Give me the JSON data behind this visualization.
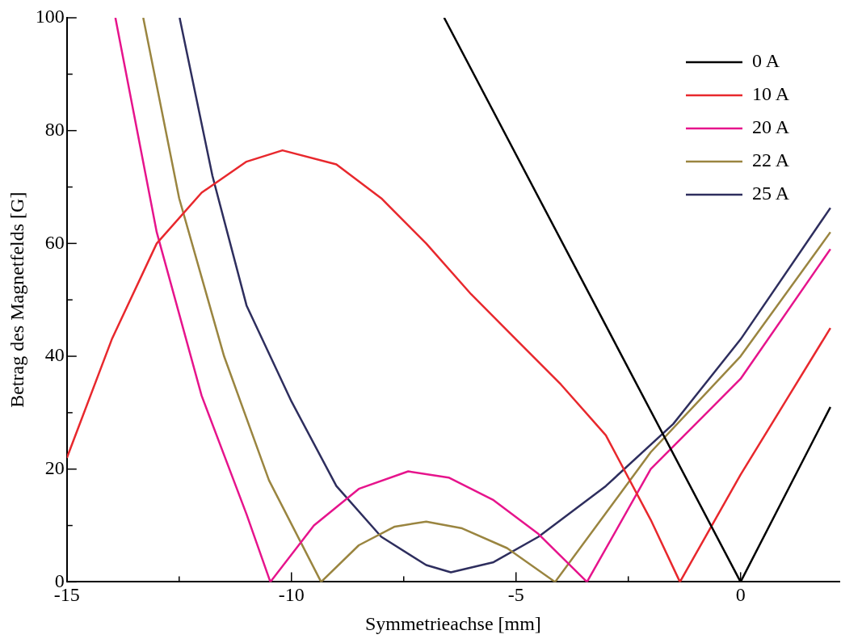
{
  "chart_data": {
    "type": "line",
    "xlabel": "Symmetrieachse [mm]",
    "ylabel": "Betrag des Magnetfelds [G]",
    "xlim": [
      -15,
      2.2
    ],
    "ylim": [
      0,
      100
    ],
    "xticks": [
      -15,
      {
        "value": -12.5,
        "label": null
      },
      -10,
      {
        "value": -7.5,
        "label": null
      },
      -5,
      {
        "value": -2.5,
        "label": null
      },
      0
    ],
    "yticks": [
      0,
      {
        "value": 10,
        "label": null
      },
      20,
      {
        "value": 30,
        "label": null
      },
      40,
      {
        "value": 50,
        "label": null
      },
      60,
      {
        "value": 70,
        "label": null
      },
      80,
      {
        "value": 90,
        "label": null
      },
      100
    ],
    "grid": false,
    "legend": "top right",
    "marker": "none",
    "line_style": "solid",
    "series": [
      {
        "name": "0 A",
        "color": "#000000",
        "x": [
          -6.6,
          0,
          2
        ],
        "values": [
          100,
          0,
          31
        ]
      },
      {
        "name": "10 A",
        "color": "#e8282d",
        "x": [
          -15,
          -14,
          -13,
          -12,
          -11,
          -10.2,
          -9,
          -8,
          -7,
          -6,
          -5,
          -4,
          -3,
          -2,
          -1.35,
          0,
          1,
          2
        ],
        "values": [
          22,
          43,
          60,
          69,
          74.5,
          76.5,
          74,
          68,
          60,
          51,
          43,
          35,
          26,
          11,
          0,
          19,
          32,
          45
        ]
      },
      {
        "name": "20 A",
        "color": "#e6148c",
        "x": [
          -13.92,
          -13,
          -12,
          -11,
          -10.47,
          -9.5,
          -8.5,
          -7.4,
          -6.5,
          -5.5,
          -4.5,
          -3.42,
          -2,
          0,
          2
        ],
        "values": [
          100,
          62,
          33,
          12,
          0,
          10,
          16.5,
          19.6,
          18.5,
          14.5,
          8.5,
          0,
          20,
          36,
          59
        ]
      },
      {
        "name": "22 A",
        "color": "#9a8540",
        "x": [
          -13.3,
          -12.5,
          -11.5,
          -10.5,
          -9.34,
          -8.5,
          -7.7,
          -7,
          -6.2,
          -5.2,
          -4.13,
          -2,
          0,
          2
        ],
        "values": [
          100,
          68,
          40,
          18,
          0,
          6.5,
          9.8,
          10.7,
          9.5,
          6,
          0,
          23,
          40,
          62
        ]
      },
      {
        "name": "25 A",
        "color": "#2e2e5e",
        "x": [
          -12.49,
          -11.76,
          -11,
          -10,
          -9,
          -8,
          -7,
          -6.45,
          -5.5,
          -4.5,
          -3,
          -1.5,
          0,
          2
        ],
        "values": [
          100,
          72,
          49,
          32,
          17,
          8,
          3,
          1.7,
          3.5,
          8,
          17,
          28,
          43,
          66.3
        ]
      }
    ]
  }
}
